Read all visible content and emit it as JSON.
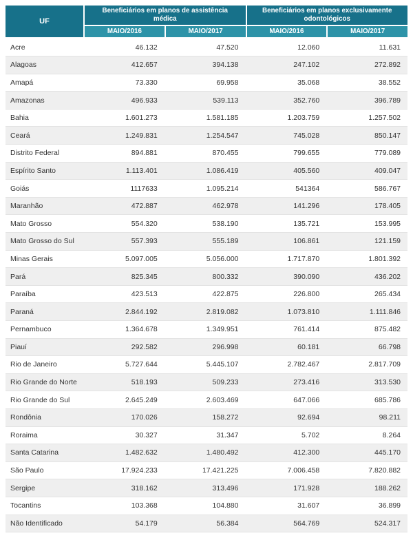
{
  "colors": {
    "header_dark": "#17718a",
    "header_light": "#2d93a8",
    "row_alt": "#efefef",
    "row_border": "#e3e3e3",
    "text": "#333333"
  },
  "table": {
    "uf_header": "UF",
    "groups": [
      {
        "label": "Beneficiários em planos de assistência médica",
        "columns": [
          "MAIO/2016",
          "MAIO/2017"
        ]
      },
      {
        "label": "Beneficiários em planos exclusivamente odontológicos",
        "columns": [
          "MAIO/2016",
          "MAIO/2017"
        ]
      }
    ],
    "rows": [
      {
        "uf": "Acre",
        "values": [
          "46.132",
          "47.520",
          "12.060",
          "11.631"
        ]
      },
      {
        "uf": "Alagoas",
        "values": [
          "412.657",
          "394.138",
          "247.102",
          "272.892"
        ]
      },
      {
        "uf": "Amapá",
        "values": [
          "73.330",
          "69.958",
          "35.068",
          "38.552"
        ]
      },
      {
        "uf": "Amazonas",
        "values": [
          "496.933",
          "539.113",
          "352.760",
          "396.789"
        ]
      },
      {
        "uf": "Bahia",
        "values": [
          "1.601.273",
          "1.581.185",
          "1.203.759",
          "1.257.502"
        ]
      },
      {
        "uf": "Ceará",
        "values": [
          "1.249.831",
          "1.254.547",
          "745.028",
          "850.147"
        ]
      },
      {
        "uf": "Distrito Federal",
        "values": [
          "894.881",
          "870.455",
          "799.655",
          "779.089"
        ]
      },
      {
        "uf": "Espírito Santo",
        "values": [
          "1.113.401",
          "1.086.419",
          "405.560",
          "409.047"
        ]
      },
      {
        "uf": "Goiás",
        "values": [
          "1117633",
          "1.095.214",
          "541364",
          "586.767"
        ]
      },
      {
        "uf": "Maranhão",
        "values": [
          "472.887",
          "462.978",
          "141.296",
          "178.405"
        ]
      },
      {
        "uf": "Mato Grosso",
        "values": [
          "554.320",
          "538.190",
          "135.721",
          "153.995"
        ]
      },
      {
        "uf": "Mato Grosso do Sul",
        "values": [
          "557.393",
          "555.189",
          "106.861",
          "121.159"
        ]
      },
      {
        "uf": "Minas Gerais",
        "values": [
          "5.097.005",
          "5.056.000",
          "1.717.870",
          "1.801.392"
        ]
      },
      {
        "uf": "Pará",
        "values": [
          "825.345",
          "800.332",
          "390.090",
          "436.202"
        ]
      },
      {
        "uf": "Paraíba",
        "values": [
          "423.513",
          "422.875",
          "226.800",
          "265.434"
        ]
      },
      {
        "uf": "Paraná",
        "values": [
          "2.844.192",
          "2.819.082",
          "1.073.810",
          "1.111.846"
        ]
      },
      {
        "uf": "Pernambuco",
        "values": [
          "1.364.678",
          "1.349.951",
          "761.414",
          "875.482"
        ]
      },
      {
        "uf": "Piauí",
        "values": [
          "292.582",
          "296.998",
          "60.181",
          "66.798"
        ]
      },
      {
        "uf": "Rio de Janeiro",
        "values": [
          "5.727.644",
          "5.445.107",
          "2.782.467",
          "2.817.709"
        ]
      },
      {
        "uf": "Rio Grande do Norte",
        "values": [
          "518.193",
          "509.233",
          "273.416",
          "313.530"
        ]
      },
      {
        "uf": "Rio Grande do Sul",
        "values": [
          "2.645.249",
          "2.603.469",
          "647.066",
          "685.786"
        ]
      },
      {
        "uf": "Rondônia",
        "values": [
          "170.026",
          "158.272",
          "92.694",
          "98.211"
        ]
      },
      {
        "uf": "Roraima",
        "values": [
          "30.327",
          "31.347",
          "5.702",
          "8.264"
        ]
      },
      {
        "uf": "Santa Catarina",
        "values": [
          "1.482.632",
          "1.480.492",
          "412.300",
          "445.170"
        ]
      },
      {
        "uf": "São Paulo",
        "values": [
          "17.924.233",
          "17.421.225",
          "7.006.458",
          "7.820.882"
        ]
      },
      {
        "uf": "Sergipe",
        "values": [
          "318.162",
          "313.496",
          "171.928",
          "188.262"
        ]
      },
      {
        "uf": "Tocantins",
        "values": [
          "103.368",
          "104.880",
          "31.607",
          "36.899"
        ]
      },
      {
        "uf": "Não Identificado",
        "values": [
          "54.179",
          "56.384",
          "564.769",
          "524.317"
        ]
      }
    ]
  }
}
